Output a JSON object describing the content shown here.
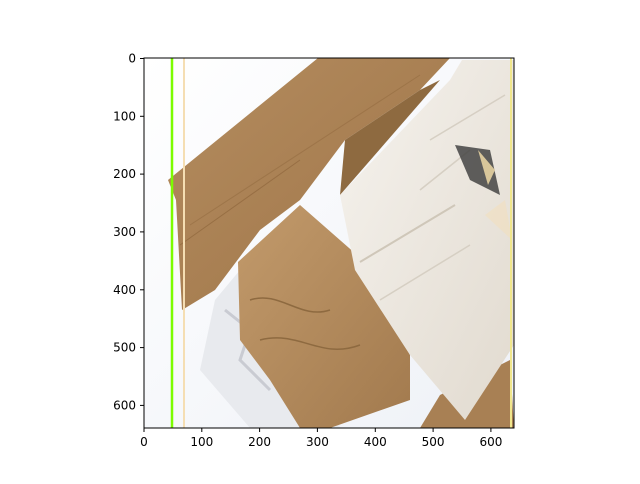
{
  "figure": {
    "x_ticks": [
      "0",
      "100",
      "200",
      "300",
      "400",
      "500",
      "600"
    ],
    "y_ticks": [
      "0",
      "100",
      "200",
      "300",
      "400",
      "500",
      "600"
    ],
    "xlim": [
      0,
      640
    ],
    "ylim_inverted": [
      640,
      0
    ],
    "image_subject": "crumpled cardboard box pieces on white background",
    "overlay_lines": [
      {
        "x": 50,
        "color": "#7cfc00"
      },
      {
        "x": 70,
        "color": "#f5deb3"
      },
      {
        "x": 635,
        "color": "#f0e68c"
      }
    ]
  }
}
